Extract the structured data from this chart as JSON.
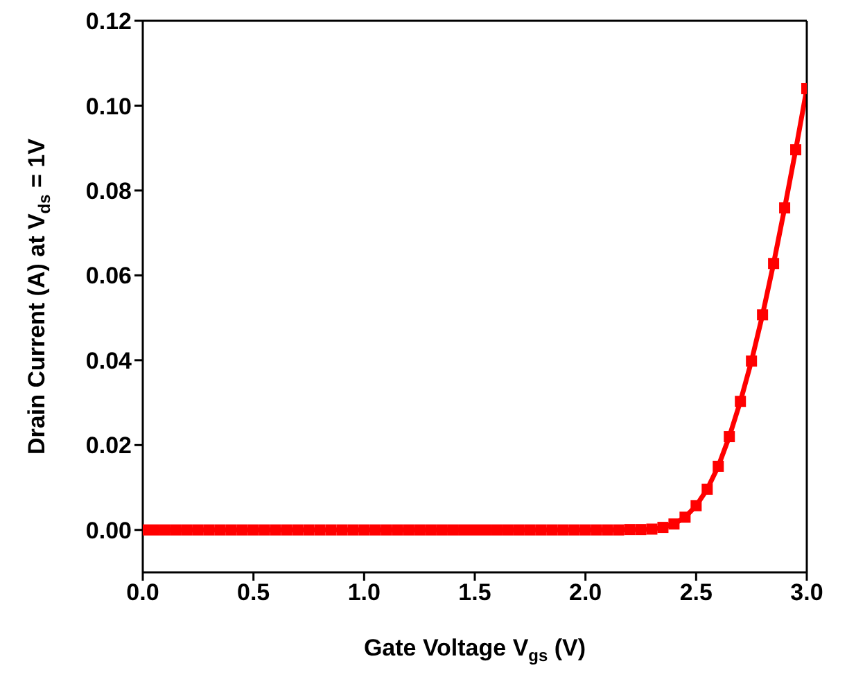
{
  "chart_data": {
    "type": "line",
    "xlabel": "Gate Voltage V$_{gs}$ (V)",
    "ylabel": "Drain Current (A) at V$_{ds}$ = 1V",
    "x": [
      0,
      0.05,
      0.1,
      0.15,
      0.2,
      0.25,
      0.3,
      0.35,
      0.4,
      0.45,
      0.5,
      0.55,
      0.6,
      0.65,
      0.7,
      0.75,
      0.8,
      0.85,
      0.9,
      0.95,
      1.0,
      1.05,
      1.1,
      1.15,
      1.2,
      1.25,
      1.3,
      1.35,
      1.4,
      1.45,
      1.5,
      1.55,
      1.6,
      1.65,
      1.7,
      1.75,
      1.8,
      1.85,
      1.9,
      1.95,
      2.0,
      2.05,
      2.1,
      2.15,
      2.2,
      2.25,
      2.3,
      2.35,
      2.4,
      2.45,
      2.5,
      2.55,
      2.6,
      2.65,
      2.7,
      2.75,
      2.8,
      2.85,
      2.9,
      2.95,
      3.0
    ],
    "series": [
      {
        "color": "#ff0000",
        "values": [
          0,
          0,
          0,
          0,
          0,
          0,
          0,
          0,
          0,
          0,
          0,
          0,
          0,
          0,
          0,
          0,
          0,
          0,
          0,
          0,
          0,
          0,
          0,
          0,
          0,
          0,
          0,
          0,
          0,
          0,
          0,
          0,
          0,
          0,
          0,
          0,
          0,
          0,
          0,
          0,
          0,
          0,
          0,
          0,
          0.0001,
          0.0001,
          0.0002,
          0.0006,
          0.0014,
          0.003,
          0.0057,
          0.0096,
          0.015,
          0.022,
          0.0303,
          0.0398,
          0.0507,
          0.0628,
          0.0759,
          0.0896,
          0.104
        ]
      }
    ],
    "marker": "square",
    "line_style": "solid",
    "grid": false,
    "legend": false,
    "xlim": [
      0,
      3.0
    ],
    "xticks": [
      {
        "value": 0,
        "label": "0.0"
      },
      0.5,
      {
        "value": 1,
        "label": "1.0"
      },
      1.5,
      {
        "value": 2,
        "label": "2.0"
      },
      2.5,
      {
        "value": 3,
        "label": "3.0"
      }
    ],
    "ylim": [
      -0.01,
      0.12
    ],
    "yticks": [
      {
        "value": 0,
        "label": "0.00"
      },
      0.02,
      0.04,
      0.06,
      0.08,
      {
        "value": 0.1,
        "label": "0.10"
      },
      0.12
    ]
  }
}
